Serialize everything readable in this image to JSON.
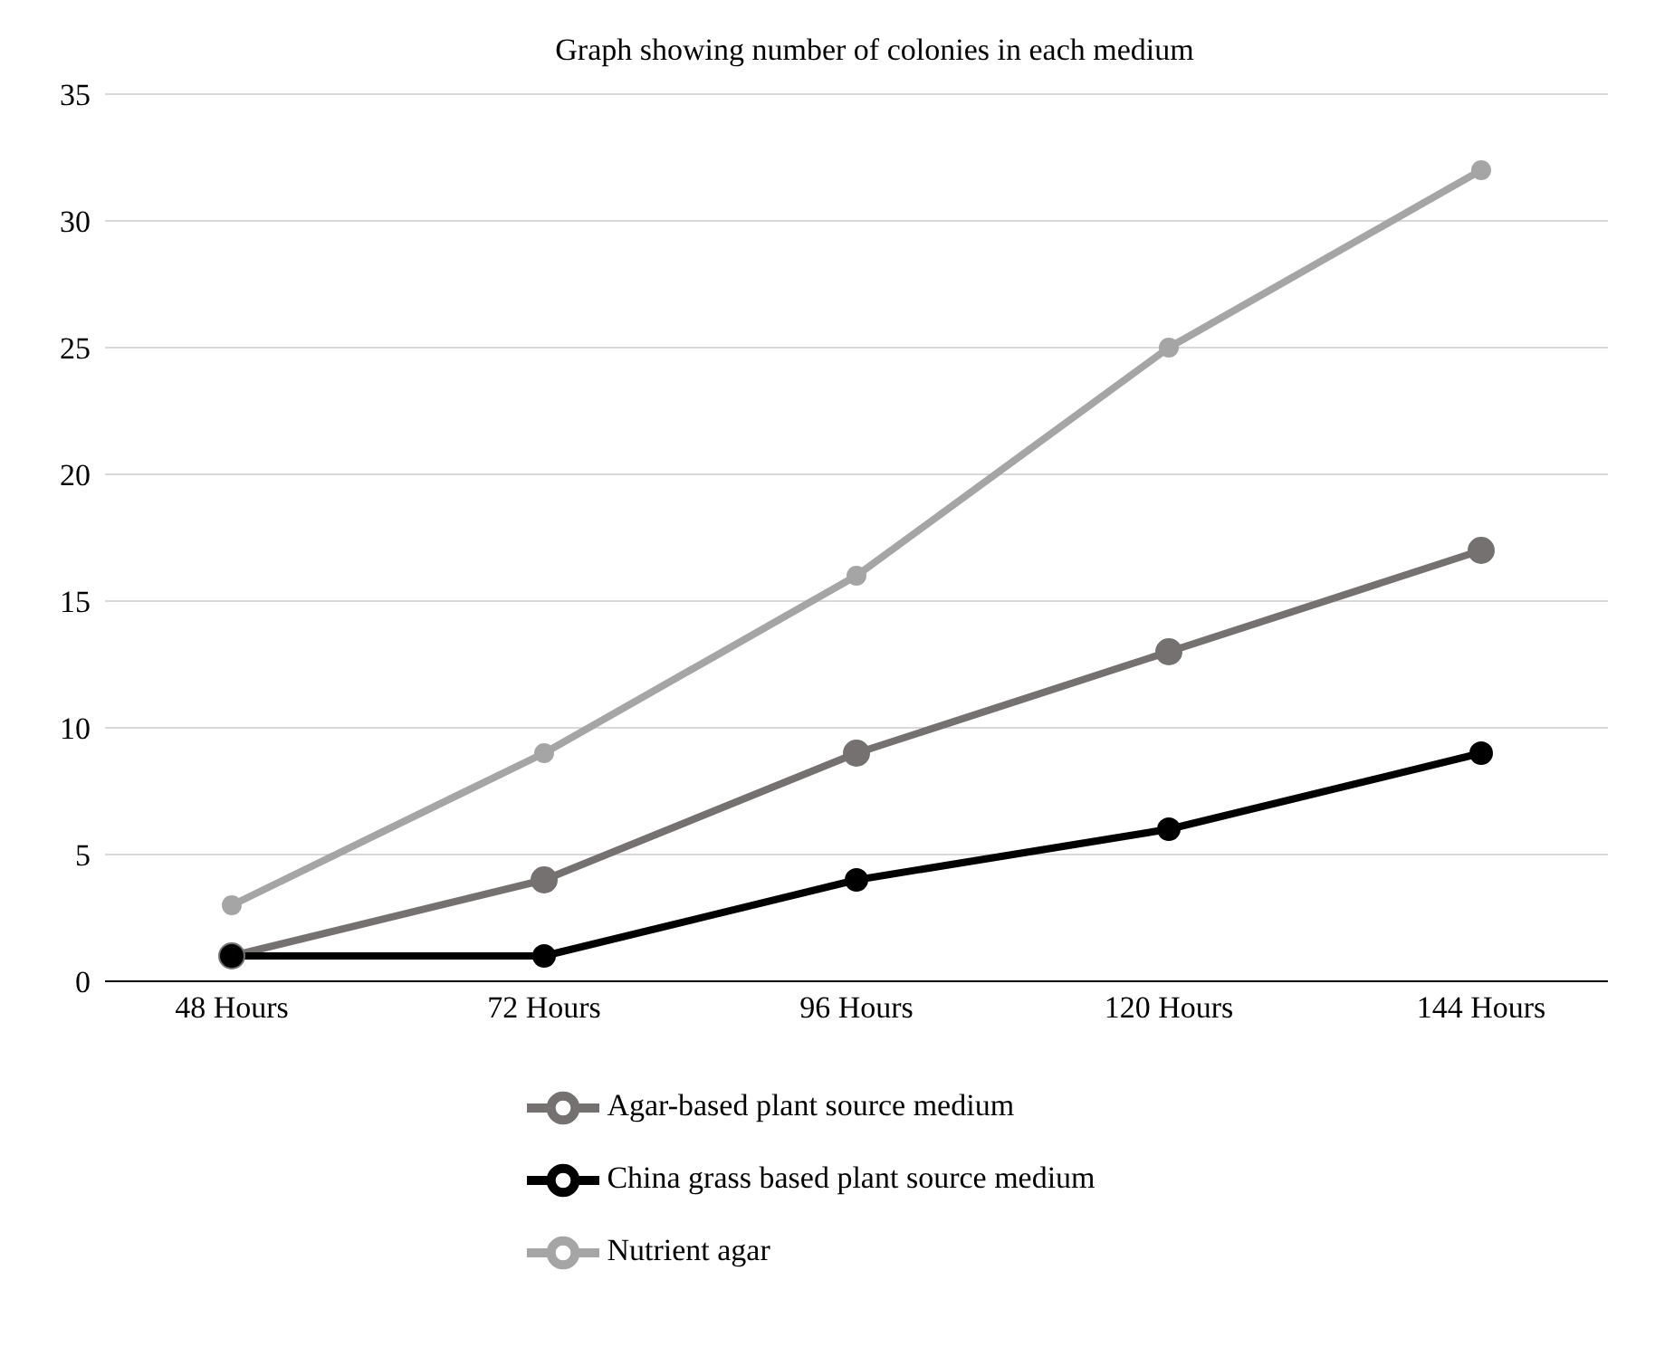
{
  "chart_data": {
    "type": "line",
    "title": "Graph showing number of colonies in each medium",
    "categories": [
      "48 Hours",
      "72 Hours",
      "96 Hours",
      "120 Hours",
      "144 Hours"
    ],
    "series": [
      {
        "name": "Agar-based plant source medium",
        "color": "#767171",
        "values": [
          1,
          4,
          9,
          13,
          17
        ]
      },
      {
        "name": "China grass based plant source medium",
        "color": "#000000",
        "values": [
          1,
          1,
          4,
          6,
          9
        ]
      },
      {
        "name": "Nutrient agar",
        "color": "#a5a5a5",
        "values": [
          3,
          9,
          16,
          25,
          32
        ]
      }
    ],
    "ylim": [
      0,
      35
    ],
    "yticks": [
      0,
      5,
      10,
      15,
      20,
      25,
      30,
      35
    ],
    "grid": "y",
    "legend": "bottom",
    "marker": "circle",
    "line_style": "solid"
  }
}
